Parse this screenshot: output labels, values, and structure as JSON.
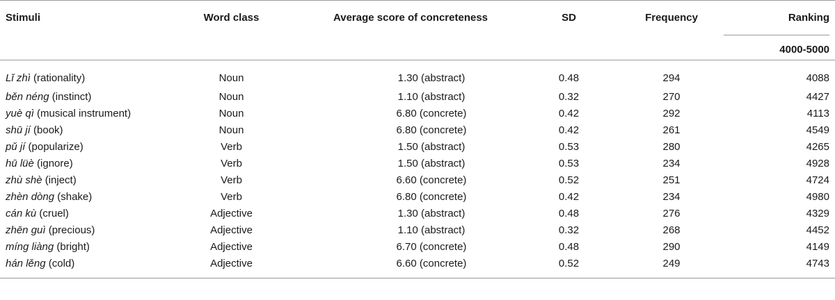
{
  "table": {
    "headers": {
      "stimuli": "Stimuli",
      "word_class": "Word class",
      "avg_concreteness": "Average score of concreteness",
      "sd": "SD",
      "frequency": "Frequency",
      "ranking": "Ranking",
      "ranking_range": "4000-5000"
    },
    "rows": [
      {
        "pinyin": "Lǐ zhì",
        "gloss": " (rationality)",
        "word_class": "Noun",
        "avg": "1.30 (abstract)",
        "sd": "0.48",
        "frequency": "294",
        "ranking": "4088"
      },
      {
        "pinyin": "běn néng",
        "gloss": " (instinct)",
        "word_class": "Noun",
        "avg": "1.10 (abstract)",
        "sd": "0.32",
        "frequency": "270",
        "ranking": "4427"
      },
      {
        "pinyin": "yuè qì",
        "gloss": " (musical instrument)",
        "word_class": "Noun",
        "avg": "6.80 (concrete)",
        "sd": "0.42",
        "frequency": "292",
        "ranking": "4113"
      },
      {
        "pinyin": "shū jí",
        "gloss": " (book)",
        "word_class": "Noun",
        "avg": "6.80 (concrete)",
        "sd": "0.42",
        "frequency": "261",
        "ranking": "4549"
      },
      {
        "pinyin": "pǔ jí",
        "gloss": " (popularize)",
        "word_class": "Verb",
        "avg": "1.50 (abstract)",
        "sd": "0.53",
        "frequency": "280",
        "ranking": "4265"
      },
      {
        "pinyin": "hū lüè",
        "gloss": " (ignore)",
        "word_class": "Verb",
        "avg": "1.50 (abstract)",
        "sd": "0.53",
        "frequency": "234",
        "ranking": "4928"
      },
      {
        "pinyin": "zhù shè",
        "gloss": " (inject)",
        "word_class": "Verb",
        "avg": "6.60 (concrete)",
        "sd": "0.52",
        "frequency": "251",
        "ranking": "4724"
      },
      {
        "pinyin": "zhèn dòng",
        "gloss": " (shake)",
        "word_class": "Verb",
        "avg": "6.80 (concrete)",
        "sd": "0.42",
        "frequency": "234",
        "ranking": "4980"
      },
      {
        "pinyin": "cán kù",
        "gloss": " (cruel)",
        "word_class": "Adjective",
        "avg": "1.30 (abstract)",
        "sd": "0.48",
        "frequency": "276",
        "ranking": "4329"
      },
      {
        "pinyin": "zhēn guì",
        "gloss": " (precious)",
        "word_class": "Adjective",
        "avg": "1.10 (abstract)",
        "sd": "0.32",
        "frequency": "268",
        "ranking": "4452"
      },
      {
        "pinyin": "míng liàng",
        "gloss": " (bright)",
        "word_class": "Adjective",
        "avg": "6.70 (concrete)",
        "sd": "0.48",
        "frequency": "290",
        "ranking": "4149"
      },
      {
        "pinyin": "hán lěng",
        "gloss": " (cold)",
        "word_class": "Adjective",
        "avg": "6.60 (concrete)",
        "sd": "0.52",
        "frequency": "249",
        "ranking": "4743"
      }
    ]
  }
}
